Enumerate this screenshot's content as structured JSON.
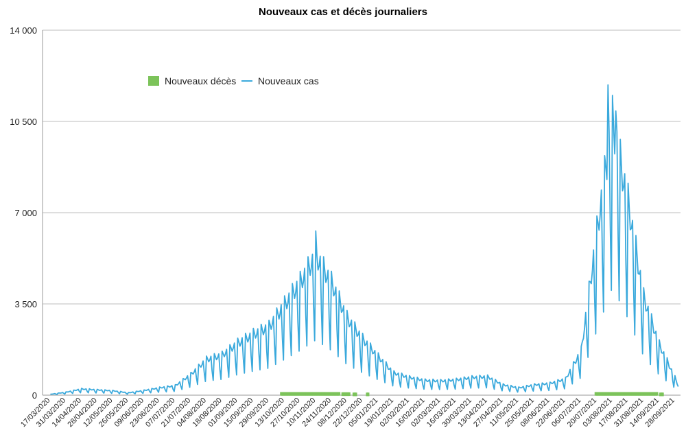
{
  "chart_data": {
    "type": "line",
    "title": "Nouveaux cas et décès journaliers",
    "ylim": [
      0,
      14000
    ],
    "yticks": [
      0,
      3500,
      7000,
      10500,
      14000
    ],
    "ytick_labels": [
      "0",
      "3 500",
      "7 000",
      "10 500",
      "14 000"
    ],
    "xlabels": [
      "17/03/2020",
      "31/03/2020",
      "14/04/2020",
      "28/04/2020",
      "12/05/2020",
      "26/05/2020",
      "09/06/2020",
      "23/06/2020",
      "07/07/2020",
      "21/07/2020",
      "04/08/2020",
      "18/08/2020",
      "01/09/2020",
      "15/09/2020",
      "29/09/2020",
      "13/10/2020",
      "27/10/2020",
      "10/11/2020",
      "24/11/2020",
      "08/12/2020",
      "22/12/2020",
      "05/01/2021",
      "19/01/2021",
      "02/02/2021",
      "16/02/2021",
      "02/03/2021",
      "16/03/2021",
      "30/03/2021",
      "13/04/2021",
      "27/04/2021",
      "11/05/2021",
      "25/05/2021",
      "08/06/2021",
      "22/06/2021",
      "06/07/2021",
      "20/07/2021",
      "03/08/2021",
      "17/08/2021",
      "31/08/2021",
      "14/09/2021",
      "28/09/2021"
    ],
    "grid": true,
    "legend_position": "top-left",
    "series": [
      {
        "name": "Nouveaux décès",
        "color": "#7cc35a",
        "marker": "square",
        "segments": [
          {
            "start": "10/10/2020",
            "end": "01/12/2020",
            "value": 50
          },
          {
            "start": "04/12/2020",
            "end": "10/12/2020",
            "value": 40
          },
          {
            "start": "14/12/2020",
            "end": "16/12/2020",
            "value": 30
          },
          {
            "start": "26/12/2020",
            "end": "27/12/2020",
            "value": 30
          },
          {
            "start": "19/07/2021",
            "end": "12/09/2021",
            "value": 50
          },
          {
            "start": "15/09/2021",
            "end": "17/09/2021",
            "value": 30
          }
        ]
      },
      {
        "name": "Nouveaux cas",
        "color": "#3aa9dc",
        "weekly_average": [
          {
            "date": "17/03/2020",
            "value": 30
          },
          {
            "date": "31/03/2020",
            "value": 100
          },
          {
            "date": "14/04/2020",
            "value": 210
          },
          {
            "date": "28/04/2020",
            "value": 180
          },
          {
            "date": "12/05/2020",
            "value": 150
          },
          {
            "date": "26/05/2020",
            "value": 80
          },
          {
            "date": "09/06/2020",
            "value": 160
          },
          {
            "date": "23/06/2020",
            "value": 250
          },
          {
            "date": "07/07/2020",
            "value": 320
          },
          {
            "date": "21/07/2020",
            "value": 700
          },
          {
            "date": "04/08/2020",
            "value": 1200
          },
          {
            "date": "18/08/2020",
            "value": 1350
          },
          {
            "date": "01/09/2020",
            "value": 1750
          },
          {
            "date": "15/09/2020",
            "value": 2050
          },
          {
            "date": "29/09/2020",
            "value": 2300
          },
          {
            "date": "13/10/2020",
            "value": 3050
          },
          {
            "date": "27/10/2020",
            "value": 3800
          },
          {
            "date": "10/11/2020",
            "value": 4700
          },
          {
            "date": "24/11/2020",
            "value": 3800
          },
          {
            "date": "08/12/2020",
            "value": 2600
          },
          {
            "date": "22/12/2020",
            "value": 1900
          },
          {
            "date": "05/01/2021",
            "value": 1300
          },
          {
            "date": "19/01/2021",
            "value": 750
          },
          {
            "date": "02/02/2021",
            "value": 600
          },
          {
            "date": "16/02/2021",
            "value": 500
          },
          {
            "date": "02/03/2021",
            "value": 480
          },
          {
            "date": "16/03/2021",
            "value": 520
          },
          {
            "date": "30/03/2021",
            "value": 600
          },
          {
            "date": "13/04/2021",
            "value": 620
          },
          {
            "date": "27/04/2021",
            "value": 350
          },
          {
            "date": "11/05/2021",
            "value": 250
          },
          {
            "date": "25/05/2021",
            "value": 350
          },
          {
            "date": "08/06/2021",
            "value": 400
          },
          {
            "date": "22/06/2021",
            "value": 550
          },
          {
            "date": "06/07/2021",
            "value": 1500
          },
          {
            "date": "20/07/2021",
            "value": 5500
          },
          {
            "date": "03/08/2021",
            "value": 9200
          },
          {
            "date": "17/08/2021",
            "value": 6500
          },
          {
            "date": "31/08/2021",
            "value": 3300
          },
          {
            "date": "14/09/2021",
            "value": 1700
          },
          {
            "date": "28/09/2021",
            "value": 600
          },
          {
            "date": "01/10/2021",
            "value": 300
          }
        ],
        "peaks": [
          {
            "date": "10/11/2020",
            "value": 6300
          },
          {
            "date": "30/07/2021",
            "value": 11900
          },
          {
            "date": "06/08/2021",
            "value": 10900
          }
        ]
      }
    ]
  }
}
